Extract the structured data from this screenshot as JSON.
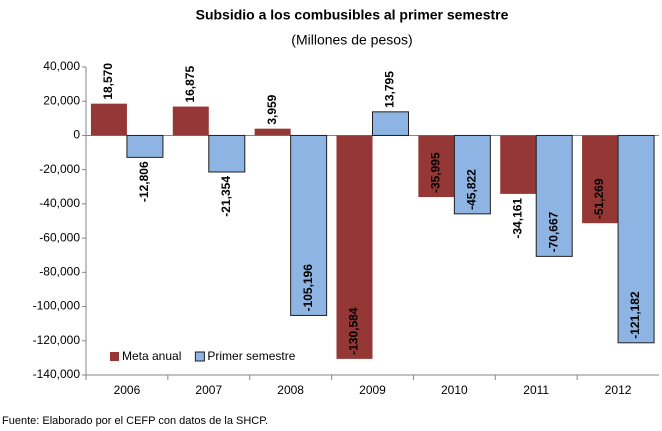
{
  "chart_data": {
    "type": "bar",
    "title": "Subsidio a los combusibles al primer semestre",
    "subtitle": "(Millones de pesos)",
    "categories": [
      "2006",
      "2007",
      "2008",
      "2009",
      "2010",
      "2011",
      "2012"
    ],
    "series": [
      {
        "name": "Meta anual",
        "color": "#953735",
        "values": [
          18570,
          16875,
          3959,
          -130584,
          -35995,
          -34161,
          -51269
        ],
        "value_labels": [
          "18,570",
          "16,875",
          "3,959",
          "-130,584",
          "-35,995",
          "-34,161",
          "-51,269"
        ]
      },
      {
        "name": "Primer semestre",
        "color": "#8eb4e3",
        "values": [
          -12806,
          -21354,
          -105196,
          13795,
          -45822,
          -70667,
          -121182
        ],
        "value_labels": [
          "-12,806",
          "-21,354",
          "-105,196",
          "13,795",
          "-45,822",
          "-70,667",
          "-121,182"
        ]
      }
    ],
    "ylim": [
      -140000,
      40000
    ],
    "yticks": [
      {
        "value": 40000,
        "label": "40,000"
      },
      {
        "value": 20000,
        "label": "20,000"
      },
      0,
      {
        "value": -20000,
        "label": "-20,000"
      },
      {
        "value": -40000,
        "label": "-40,000"
      },
      {
        "value": -60000,
        "label": "-60,000"
      },
      {
        "value": -80000,
        "label": "-80,000"
      },
      {
        "value": -100000,
        "label": "-100,000"
      },
      {
        "value": -120000,
        "label": "-120,000"
      },
      {
        "value": -140000,
        "label": "-140,000"
      }
    ],
    "legend": "lower left",
    "note": "Fuente: Elaborado por el CEFP con datos de la SHCP."
  }
}
